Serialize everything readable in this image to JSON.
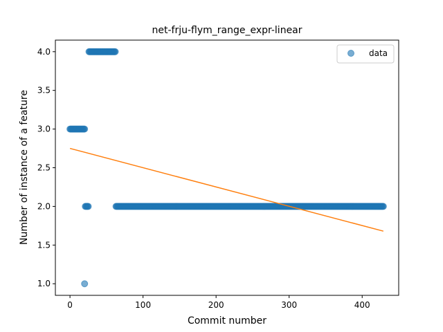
{
  "chart_data": {
    "type": "scatter",
    "title": "net-frju-flym_range_expr-linear",
    "xlabel": "Commit number",
    "ylabel": "Number of instance of a feature",
    "xlim": [
      -20,
      450
    ],
    "ylim": [
      0.85,
      4.15
    ],
    "xticks": [
      0,
      100,
      200,
      300,
      400
    ],
    "yticks": [
      1.0,
      1.5,
      2.0,
      2.5,
      3.0,
      3.5,
      4.0
    ],
    "xtick_labels": [
      "0",
      "100",
      "200",
      "300",
      "400"
    ],
    "ytick_labels": [
      "1.0",
      "1.5",
      "2.0",
      "2.5",
      "3.0",
      "3.5",
      "4.0"
    ],
    "grid": false,
    "legend_position": "top-right",
    "series": [
      {
        "name": "data",
        "kind": "scatter",
        "color": "#1f77b4",
        "segments": [
          {
            "x_start": 0,
            "x_end": 20,
            "y": 3.0
          },
          {
            "x_start": 20,
            "x_end": 20,
            "y": 1.0
          },
          {
            "x_start": 21,
            "x_end": 25,
            "y": 2.0
          },
          {
            "x_start": 26,
            "x_end": 62,
            "y": 4.0
          },
          {
            "x_start": 63,
            "x_end": 429,
            "y": 2.0
          }
        ]
      },
      {
        "kind": "line",
        "color": "#ff7f0e",
        "x": [
          0,
          429
        ],
        "y": [
          2.75,
          1.68
        ]
      }
    ]
  }
}
